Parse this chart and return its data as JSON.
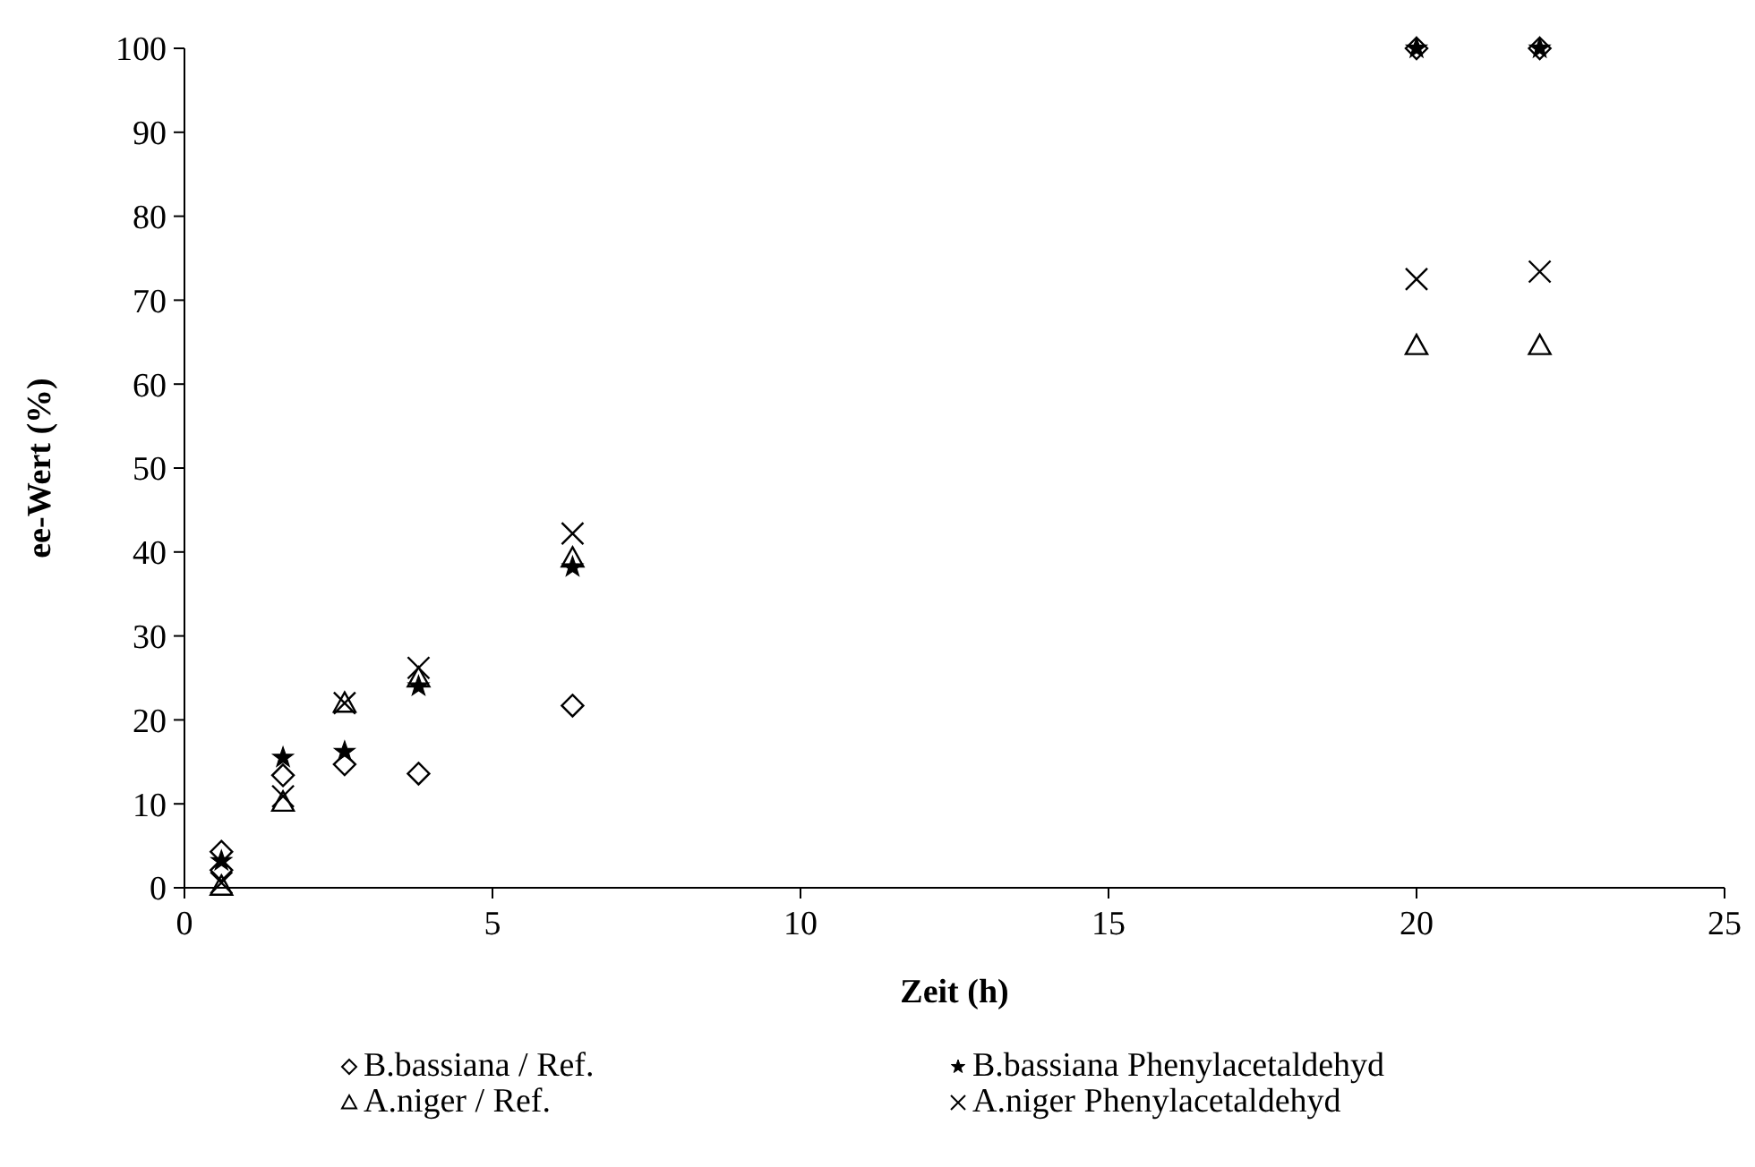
{
  "chart_data": {
    "type": "scatter",
    "xlabel": "Zeit (h)",
    "ylabel": "ee-Wert (%)",
    "xlim": [
      0,
      25
    ],
    "xticks": [
      0,
      5,
      10,
      15,
      20,
      25
    ],
    "ylim": [
      0,
      100
    ],
    "yticks": [
      0,
      10,
      20,
      30,
      40,
      50,
      60,
      70,
      80,
      90,
      100
    ],
    "grid": false,
    "legend": "bottom",
    "series": [
      {
        "name": "B.bassiana / Ref.",
        "color": "#000000",
        "marker": "diamond",
        "x": [
          0.6,
          0.6,
          1.6,
          2.6,
          3.8,
          6.3,
          20,
          22
        ],
        "values": [
          4.3,
          2.1,
          13.4,
          14.7,
          13.6,
          21.7,
          100,
          100
        ]
      },
      {
        "name": "B.bassiana Phenylacetaldehyd",
        "color": "#000000",
        "marker": "star",
        "x": [
          0.6,
          1.6,
          2.6,
          3.8,
          6.3,
          20,
          22
        ],
        "values": [
          3.2,
          15.5,
          16.2,
          24,
          38.2,
          100,
          100
        ]
      },
      {
        "name": "A.niger / Ref.",
        "color": "#000000",
        "marker": "triangle",
        "x": [
          0.6,
          1.6,
          2.6,
          3.8,
          6.3,
          20,
          22
        ],
        "values": [
          0.2,
          10.2,
          22,
          25,
          39.3,
          64.6,
          64.6
        ]
      },
      {
        "name": "A.niger Phenylacetaldehyd",
        "color": "#000000",
        "marker": "cross",
        "x": [
          0.6,
          1.6,
          2.6,
          3.8,
          6.3,
          20,
          22
        ],
        "values": [
          0.6,
          10.9,
          22,
          26.2,
          42.2,
          72.5,
          73.4
        ]
      }
    ]
  }
}
